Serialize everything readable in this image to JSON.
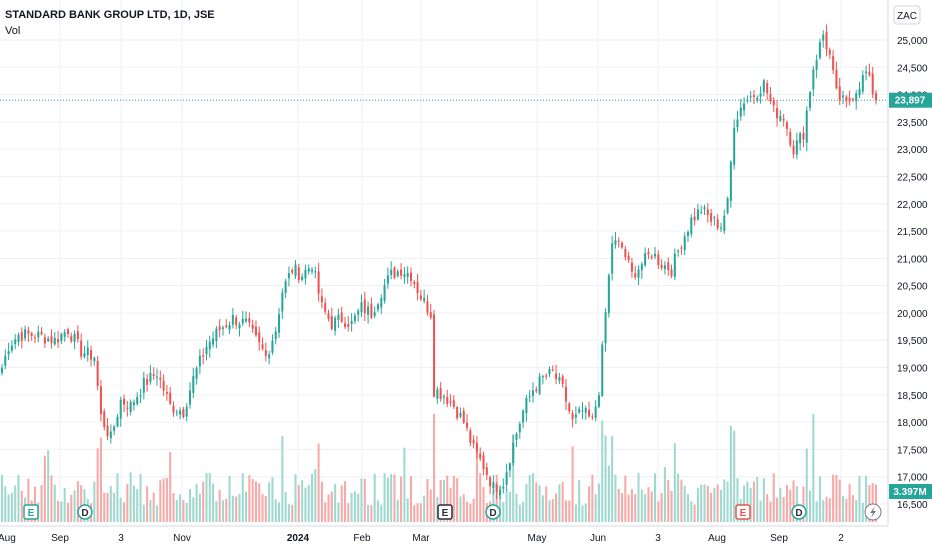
{
  "header": {
    "title": "STANDARD BANK GROUP LTD, 1D, JSE",
    "indicator": "Vol"
  },
  "price_axis": {
    "currency": "ZAC",
    "ticks": [
      "25,000",
      "24,500",
      "24,000",
      "23,500",
      "23,000",
      "22,500",
      "22,000",
      "21,500",
      "21,000",
      "20,500",
      "20,000",
      "19,500",
      "19,000",
      "18,500",
      "18,000",
      "17,500",
      "17,000",
      "16,500"
    ],
    "last_price": "23,897",
    "last_volume": "3.397M"
  },
  "colors": {
    "up": "#26a69a",
    "down": "#ef5350",
    "up_vol": "#9fd8cf",
    "down_vol": "#f7a9a7",
    "axis_badge": "#26a69a",
    "grid": "#eef0f3"
  },
  "event_icons": [
    {
      "label": "E",
      "type": "earnings"
    },
    {
      "label": "D",
      "type": "dividend"
    },
    {
      "label": "E",
      "type": "earnings"
    },
    {
      "label": "D",
      "type": "dividend"
    },
    {
      "label": "E",
      "type": "earnings"
    },
    {
      "label": "D",
      "type": "dividend"
    }
  ],
  "chart_data": {
    "type": "candlestick",
    "title": "STANDARD BANK GROUP LTD, 1D, JSE",
    "ylabel": "",
    "ylim": [
      16200,
      25300
    ],
    "x_ticks": [
      "Aug",
      "Sep",
      "3",
      "Nov",
      "2024",
      "Feb",
      "Mar",
      "May",
      "Jun",
      "3",
      "Aug",
      "Sep",
      "2"
    ],
    "anchors": [
      [
        0,
        19000
      ],
      [
        2,
        19400
      ],
      [
        5,
        19600
      ],
      [
        10,
        19600
      ],
      [
        16,
        19500
      ],
      [
        20,
        19700
      ],
      [
        24,
        19300
      ],
      [
        28,
        19200
      ],
      [
        30,
        18100
      ],
      [
        33,
        17700
      ],
      [
        36,
        18400
      ],
      [
        39,
        18300
      ],
      [
        43,
        18700
      ],
      [
        47,
        18900
      ],
      [
        51,
        18300
      ],
      [
        55,
        18200
      ],
      [
        58,
        18800
      ],
      [
        62,
        19400
      ],
      [
        66,
        19700
      ],
      [
        70,
        19900
      ],
      [
        74,
        19800
      ],
      [
        78,
        19400
      ],
      [
        80,
        19200
      ],
      [
        83,
        19700
      ],
      [
        85,
        20400
      ],
      [
        88,
        20800
      ],
      [
        91,
        20700
      ],
      [
        94,
        20900
      ],
      [
        97,
        20100
      ],
      [
        100,
        19800
      ],
      [
        103,
        19900
      ],
      [
        106,
        19800
      ],
      [
        109,
        20100
      ],
      [
        112,
        20000
      ],
      [
        115,
        20400
      ],
      [
        118,
        20700
      ],
      [
        121,
        20800
      ],
      [
        124,
        20700
      ],
      [
        127,
        20300
      ],
      [
        130,
        20000
      ],
      [
        131,
        18600
      ],
      [
        134,
        18500
      ],
      [
        137,
        18300
      ],
      [
        140,
        18000
      ],
      [
        143,
        17500
      ],
      [
        146,
        17200
      ],
      [
        149,
        16800
      ],
      [
        152,
        16900
      ],
      [
        155,
        17600
      ],
      [
        158,
        18200
      ],
      [
        161,
        18600
      ],
      [
        164,
        18800
      ],
      [
        167,
        18900
      ],
      [
        170,
        18600
      ],
      [
        173,
        18000
      ],
      [
        176,
        18200
      ],
      [
        179,
        18000
      ],
      [
        181,
        18600
      ],
      [
        183,
        20000
      ],
      [
        185,
        21300
      ],
      [
        188,
        21200
      ],
      [
        191,
        20700
      ],
      [
        194,
        20900
      ],
      [
        197,
        21100
      ],
      [
        200,
        20900
      ],
      [
        203,
        20800
      ],
      [
        206,
        21300
      ],
      [
        209,
        21700
      ],
      [
        212,
        21900
      ],
      [
        215,
        21700
      ],
      [
        218,
        21600
      ],
      [
        220,
        22000
      ],
      [
        222,
        23500
      ],
      [
        225,
        23900
      ],
      [
        228,
        24000
      ],
      [
        231,
        24200
      ],
      [
        234,
        23700
      ],
      [
        237,
        23600
      ],
      [
        240,
        23000
      ],
      [
        243,
        23300
      ],
      [
        246,
        24500
      ],
      [
        249,
        25100
      ],
      [
        251,
        24700
      ],
      [
        253,
        24000
      ],
      [
        256,
        23800
      ],
      [
        259,
        24100
      ],
      [
        262,
        24400
      ],
      [
        265,
        23900
      ]
    ],
    "volume_range": [
      0,
      10000000
    ],
    "last_price": 23897,
    "last_volume": 3397000
  }
}
